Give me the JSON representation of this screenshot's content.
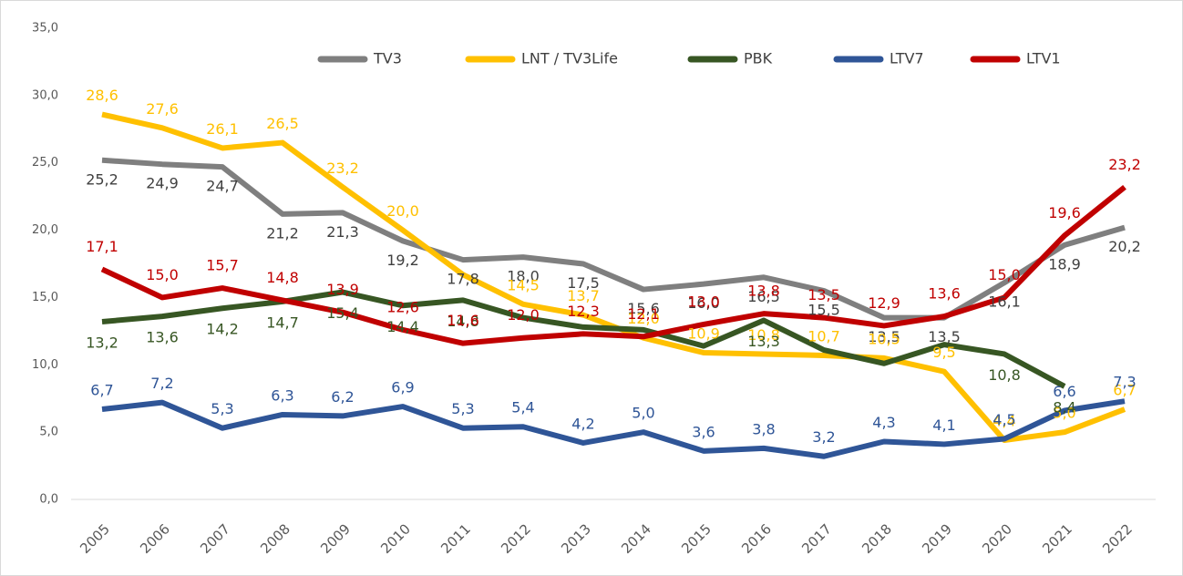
{
  "chart_data": {
    "type": "line",
    "categories": [
      "2005",
      "2006",
      "2007",
      "2008",
      "2009",
      "2010",
      "2011",
      "2012",
      "2013",
      "2014",
      "2015",
      "2016",
      "2017",
      "2018",
      "2019",
      "2020",
      "2021",
      "2022"
    ],
    "ylim": [
      0,
      35
    ],
    "yticks": [
      {
        "value": 0,
        "label": "0,0"
      },
      {
        "value": 5,
        "label": "5,0"
      },
      {
        "value": 10,
        "label": "10,0"
      },
      {
        "value": 15,
        "label": "15,0"
      },
      {
        "value": 20,
        "label": "20,0"
      },
      {
        "value": 25,
        "label": "25,0"
      },
      {
        "value": 30,
        "label": "30,0"
      },
      {
        "value": 35,
        "label": "35,0"
      }
    ],
    "legend": "top",
    "series": [
      {
        "name": "TV3",
        "color": "#7f7f7f",
        "label_color": "#404040",
        "values": [
          25.2,
          24.9,
          24.7,
          21.2,
          21.3,
          19.2,
          17.8,
          18.0,
          17.5,
          15.6,
          16.0,
          16.5,
          15.5,
          13.5,
          13.5,
          16.1,
          18.9,
          20.2
        ],
        "value_labels": [
          "25,2",
          "24,9",
          "24,7",
          "21,2",
          "21,3",
          "19,2",
          "17,8",
          "18,0",
          "17,5",
          "15,6",
          "16,0",
          "16,5",
          "15,5",
          "13,5",
          "13,5",
          "16,1",
          "18,9",
          "20,2"
        ]
      },
      {
        "name": "LNT / TV3Life",
        "color": "#ffc000",
        "label_color": "#ffc000",
        "values": [
          28.6,
          27.6,
          26.1,
          26.5,
          23.2,
          20.0,
          16.7,
          14.5,
          13.7,
          12.0,
          10.9,
          10.8,
          10.7,
          10.5,
          9.5,
          4.4,
          5.0,
          6.7
        ],
        "value_labels": [
          "28,6",
          "27,6",
          "26,1",
          "26,5",
          "23,2",
          "20,0",
          null,
          "14,5",
          "13,7",
          "12,0",
          "10,9",
          "10,8",
          "10,7",
          "10,5",
          "9,5",
          "4,4",
          "5,0",
          "6,7"
        ]
      },
      {
        "name": "PBK",
        "color": "#375623",
        "label_color": "#375623",
        "values": [
          13.2,
          13.6,
          14.2,
          14.7,
          15.4,
          14.4,
          14.8,
          13.5,
          12.8,
          12.6,
          11.4,
          13.3,
          11.1,
          10.1,
          11.5,
          10.8,
          8.4,
          null
        ],
        "value_labels": [
          "13,2",
          "13,6",
          "14,2",
          "14,7",
          "15,4",
          "14,4",
          "14,8",
          null,
          null,
          null,
          null,
          "13,3",
          null,
          null,
          null,
          "10,8",
          "8,4",
          null
        ]
      },
      {
        "name": "LTV7",
        "color": "#2f5597",
        "label_color": "#2f5597",
        "values": [
          6.7,
          7.2,
          5.3,
          6.3,
          6.2,
          6.9,
          5.3,
          5.4,
          4.2,
          5.0,
          3.6,
          3.8,
          3.2,
          4.3,
          4.1,
          4.5,
          6.6,
          7.3
        ],
        "value_labels": [
          "6,7",
          "7,2",
          "5,3",
          "6,3",
          "6,2",
          "6,9",
          "5,3",
          "5,4",
          "4,2",
          "5,0",
          "3,6",
          "3,8",
          "3,2",
          "4,3",
          "4,1",
          "4,5",
          "6,6",
          "7,3"
        ]
      },
      {
        "name": "LTV1",
        "color": "#c00000",
        "label_color": "#c00000",
        "values": [
          17.1,
          15.0,
          15.7,
          14.8,
          13.9,
          12.6,
          11.6,
          12.0,
          12.3,
          12.1,
          13.0,
          13.8,
          13.5,
          12.9,
          13.6,
          15.0,
          19.6,
          23.2
        ],
        "value_labels": [
          "17,1",
          "15,0",
          "15,7",
          "14,8",
          "13,9",
          "12,6",
          "11,6",
          "12,0",
          "12,3",
          "12,1",
          "13,0",
          "13,8",
          "13,5",
          "12,9",
          "13,6",
          "15,0",
          "19,6",
          "23,2"
        ]
      }
    ]
  }
}
